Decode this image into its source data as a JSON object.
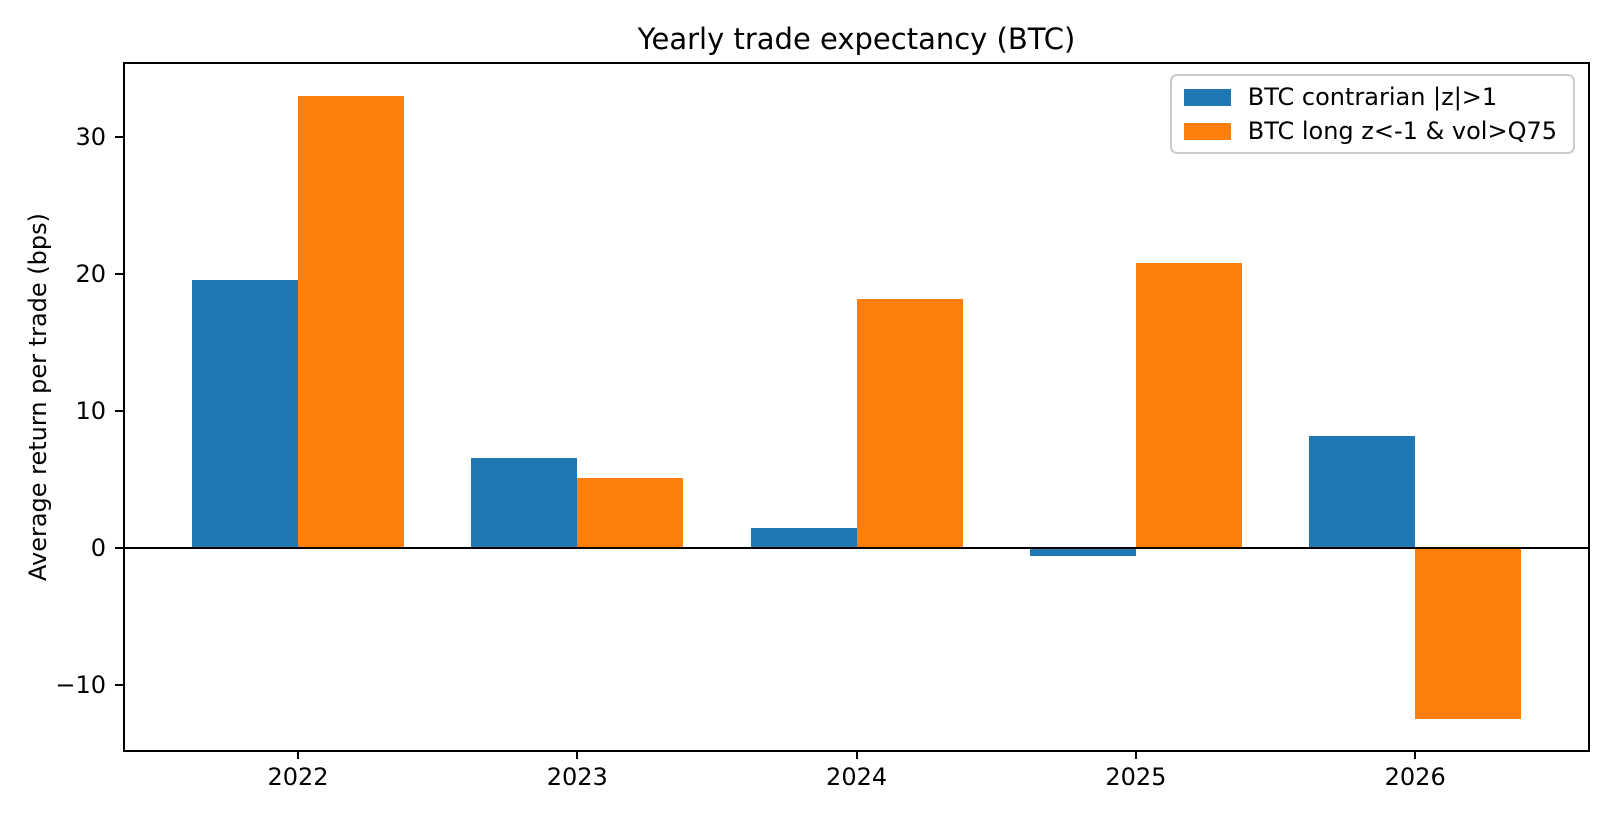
{
  "chart_data": {
    "type": "bar",
    "title": "Yearly trade expectancy (BTC)",
    "xlabel": "",
    "ylabel": "Average return per trade (bps)",
    "categories": [
      "2022",
      "2023",
      "2024",
      "2025",
      "2026"
    ],
    "series": [
      {
        "name": "BTC contrarian |z|>1",
        "color": "#1f77b4",
        "values": [
          19.6,
          6.6,
          1.5,
          -0.6,
          8.2
        ]
      },
      {
        "name": "BTC long z<-1 & vol>Q75",
        "color": "#ff7f0e",
        "values": [
          33.0,
          5.1,
          18.2,
          20.8,
          -12.5
        ]
      }
    ],
    "yticks": [
      -10,
      0,
      10,
      20,
      30
    ],
    "ylim": [
      -14.8,
      35.4
    ],
    "zero_line": true,
    "grid": false,
    "legend_position": "upper right",
    "background_color": "#ffffff",
    "spine_color": "#000000"
  }
}
